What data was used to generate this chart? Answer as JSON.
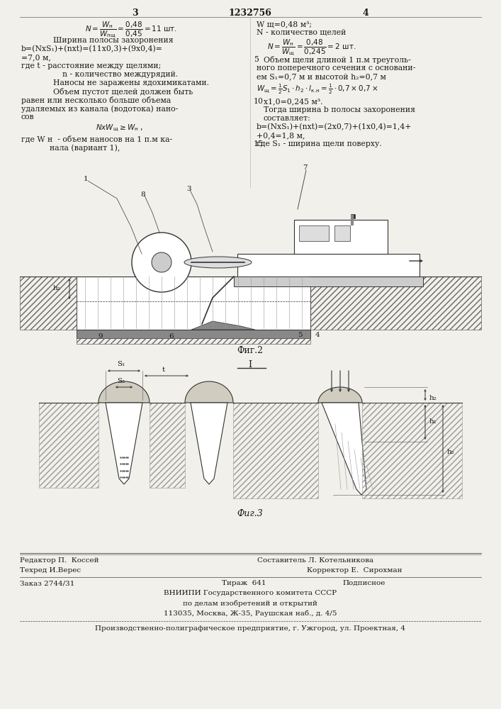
{
  "bg_color": "#f2f0eb",
  "text_color": "#1a1a1a",
  "header": {
    "page_left": "3",
    "patent_num": "1232756",
    "page_right": "4"
  },
  "footer": {
    "editor": "Редактор П.  Коссей",
    "composer": "Составитель Л. Котельникова",
    "techred": "Техред И.Верес",
    "corrector": "Корректор Е.  Сирохман",
    "order": "Заказ 2744/31",
    "tirazh": "Тираж  641",
    "podpisnoe": "Подписное",
    "vniip1": "ВНИИПИ Государственного комитета СССР",
    "vniip2": "по делам изобретений и открытий",
    "vniip3": "113035, Москва, Ж-35, Раушская наб., д. 4/5",
    "factory": "Производственно-полиграфическое предприятие, г. Ужгород, ул. Проектная, 4"
  }
}
